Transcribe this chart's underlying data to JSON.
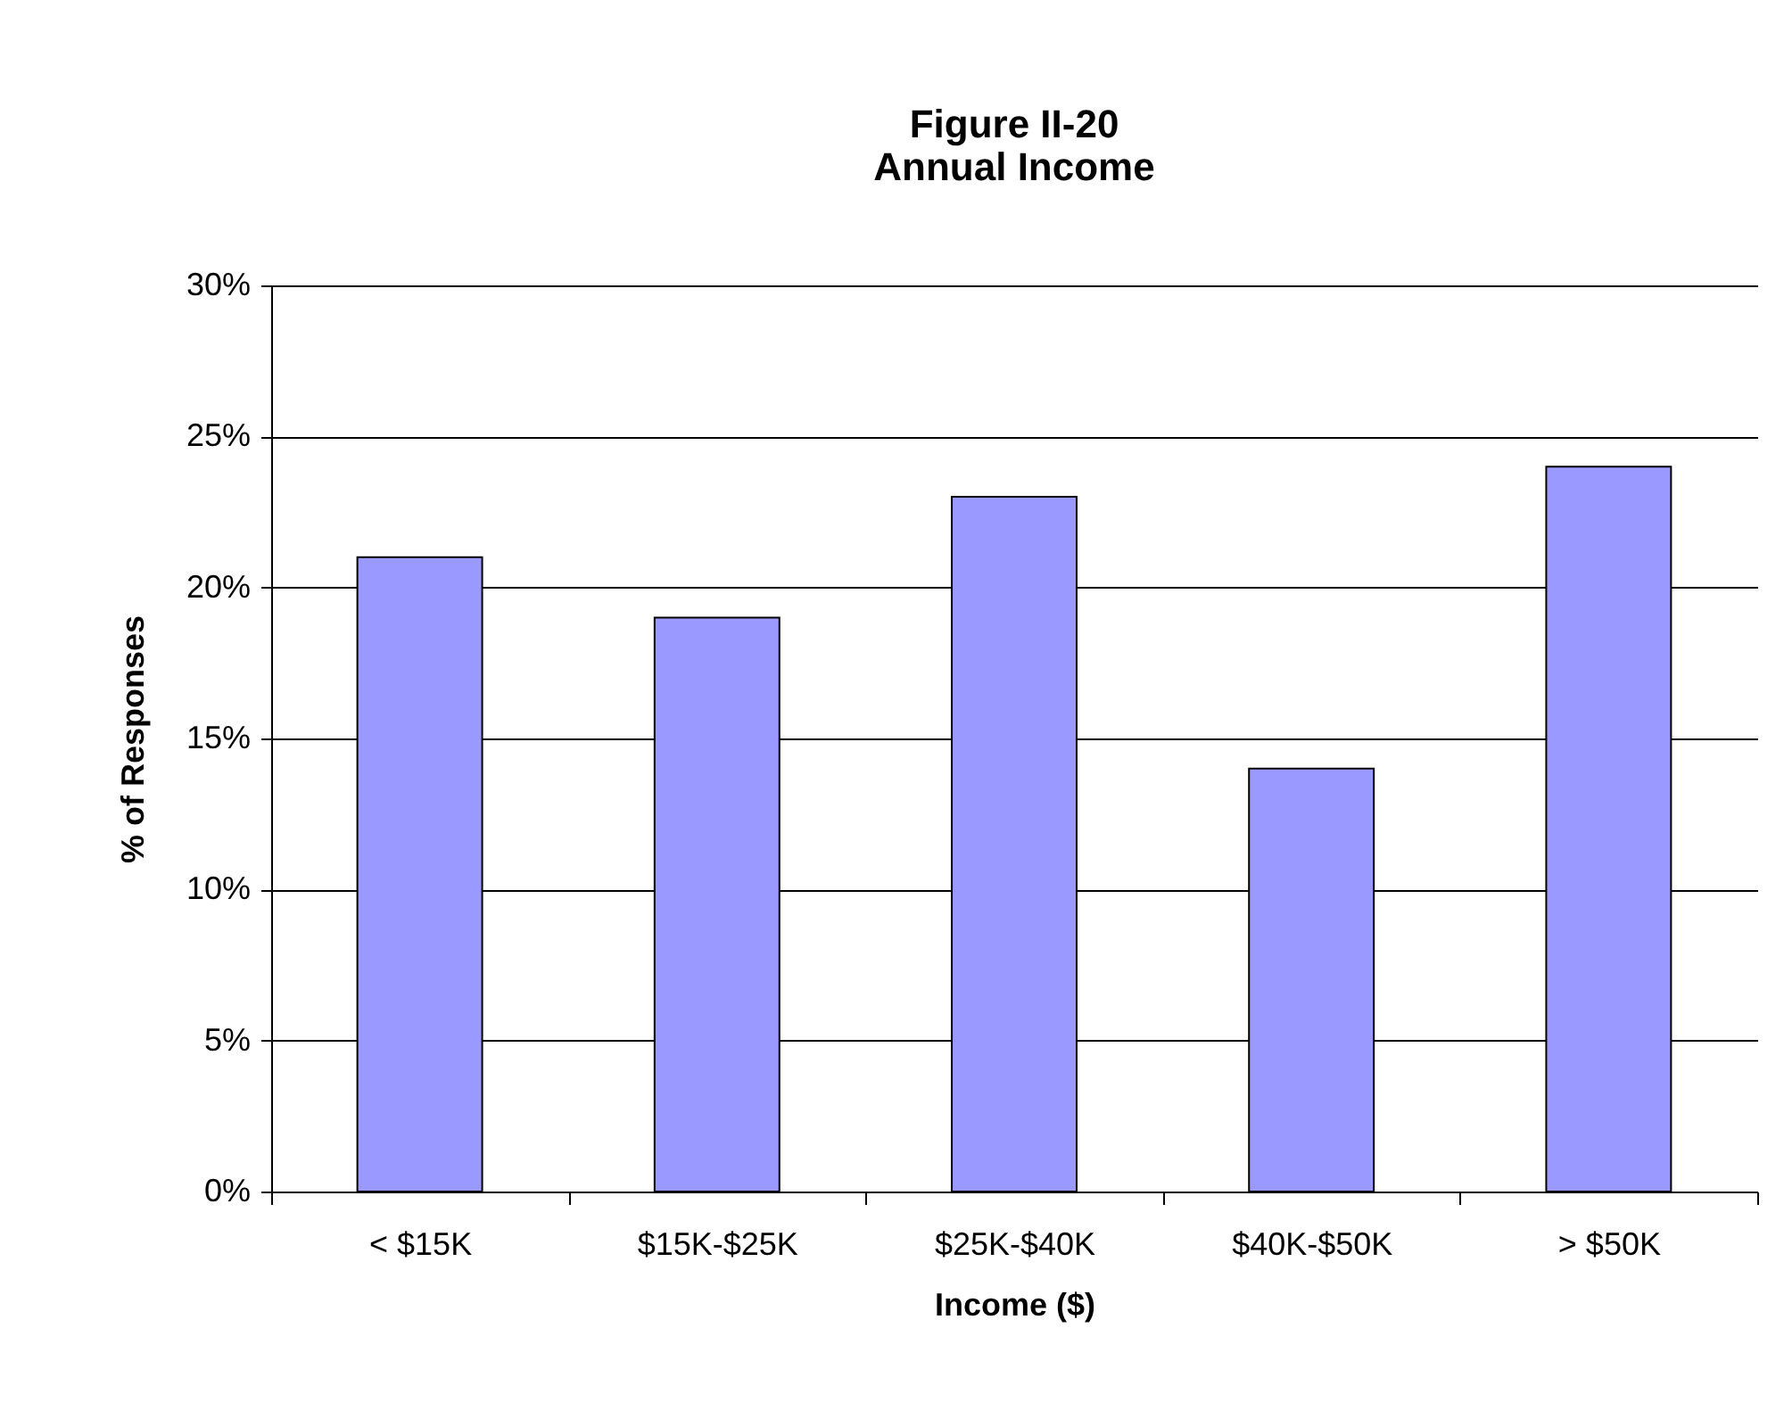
{
  "chart_data": {
    "type": "bar",
    "title": [
      "Figure II-20",
      "Annual Income"
    ],
    "xlabel": "Income ($)",
    "ylabel": "% of Responses",
    "categories": [
      "< $15K",
      "$15K-$25K",
      "$25K-$40K",
      "$40K-$50K",
      "> $50K"
    ],
    "values": [
      21,
      19,
      23,
      14,
      24
    ],
    "color": "#9999ff",
    "ylim": [
      0,
      30
    ],
    "yticks": [
      {
        "value": 0,
        "label": "0%"
      },
      {
        "value": 5,
        "label": "5%"
      },
      {
        "value": 10,
        "label": "10%"
      },
      {
        "value": 15,
        "label": "15%"
      },
      {
        "value": 20,
        "label": "20%"
      },
      {
        "value": 25,
        "label": "25%"
      },
      {
        "value": 30,
        "label": "30%"
      }
    ],
    "grid": "y"
  }
}
